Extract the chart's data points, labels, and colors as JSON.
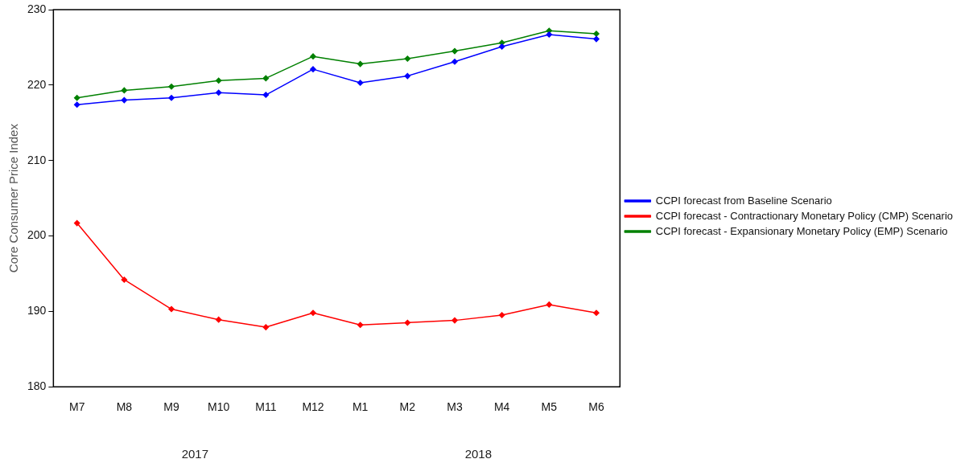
{
  "chart_data": {
    "type": "line",
    "ylabel": "Core Consumer Price Index",
    "categories": [
      "M7",
      "M8",
      "M9",
      "M10",
      "M11",
      "M12",
      "M1",
      "M2",
      "M3",
      "M4",
      "M5",
      "M6"
    ],
    "series": [
      {
        "name": "CCPI forecast from Baseline Scenario",
        "color": "#0000ff",
        "values": [
          217.4,
          218.0,
          218.3,
          219.0,
          218.7,
          222.1,
          220.3,
          221.2,
          223.1,
          225.1,
          226.7,
          226.1
        ]
      },
      {
        "name": "CCPI forecast - Contractionary Monetary Policy (CMP) Scenario",
        "color": "#ff0000",
        "values": [
          201.7,
          194.2,
          190.3,
          188.9,
          187.9,
          189.8,
          188.2,
          188.5,
          188.8,
          189.5,
          190.9,
          189.8
        ]
      },
      {
        "name": "CCPI forecast - Expansionary Monetary Policy (EMP) Scenario",
        "color": "#008000",
        "values": [
          218.3,
          219.3,
          219.8,
          220.6,
          220.9,
          223.8,
          222.8,
          223.5,
          224.5,
          225.6,
          227.2,
          226.8
        ]
      }
    ],
    "ylim": [
      180,
      230
    ],
    "yticks": [
      180,
      190,
      200,
      210,
      220,
      230
    ],
    "annotations": [
      "2017",
      "2018"
    ],
    "grid": false,
    "legend": "right",
    "marker": "diamond",
    "line_style": "solid"
  }
}
